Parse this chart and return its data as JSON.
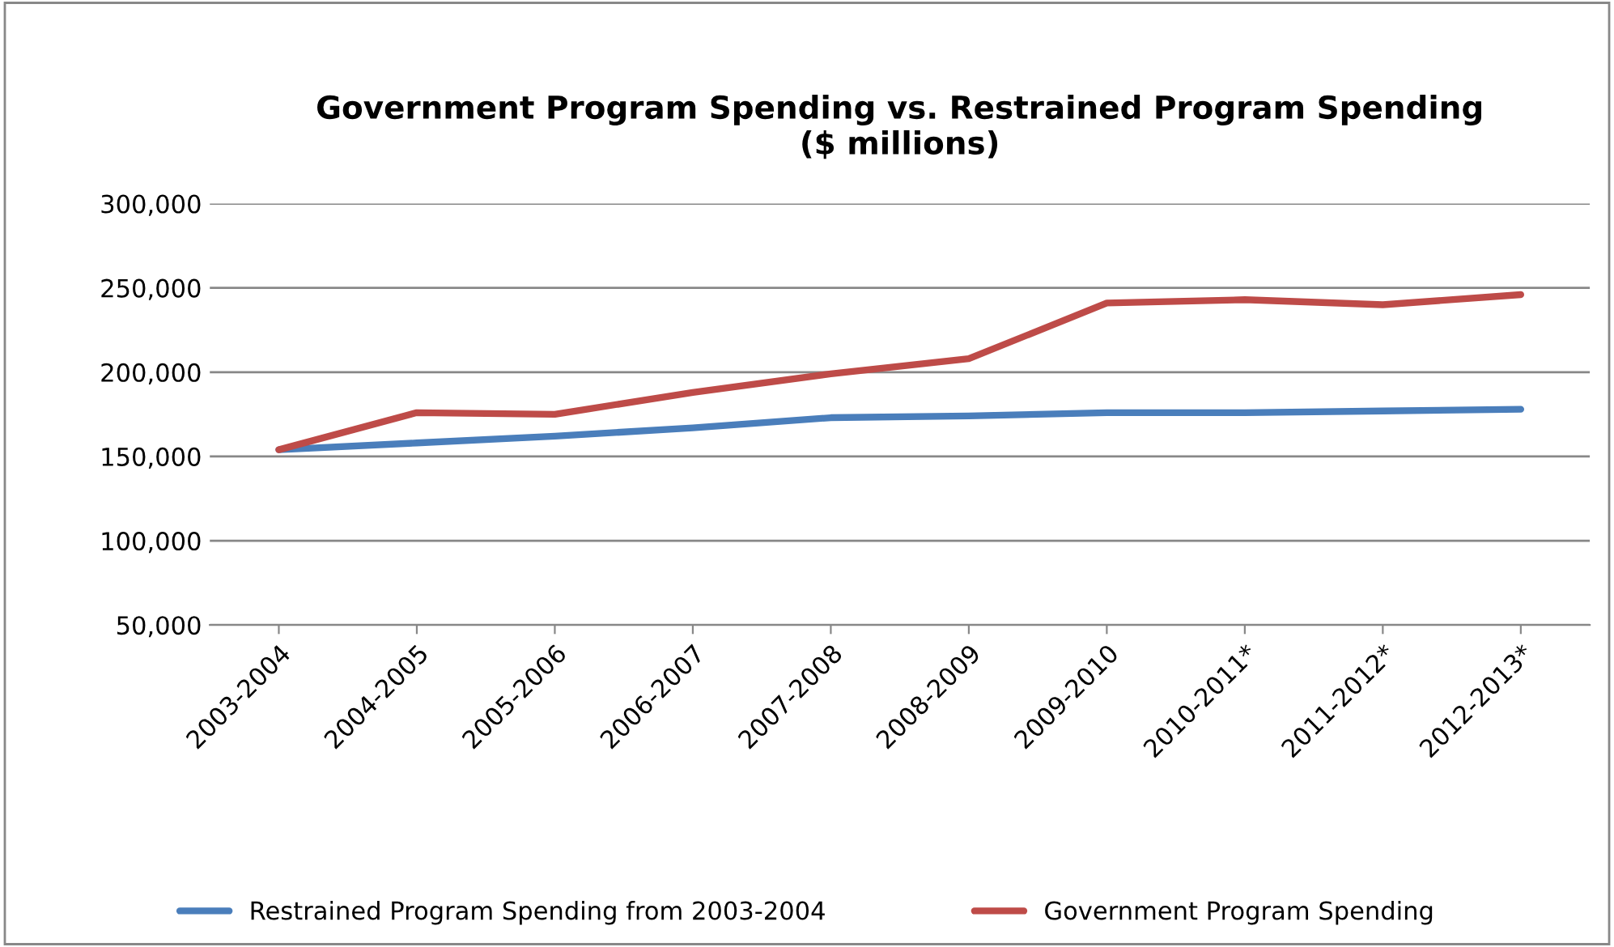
{
  "chart_data": {
    "type": "line",
    "title": "Government Program Spending vs. Restrained Program Spending\n($ millions)",
    "categories": [
      "2003-2004",
      "2004-2005",
      "2005-2006",
      "2006-2007",
      "2007-2008",
      "2008-2009",
      "2009-2010",
      "2010-2011*",
      "2011-2012*",
      "2012-2013*"
    ],
    "series": [
      {
        "name": "Restrained Program Spending from 2003-2004",
        "color": "#4a7ebb",
        "values": [
          154000,
          158000,
          162000,
          167000,
          173000,
          174000,
          176000,
          176000,
          177000,
          178000
        ]
      },
      {
        "name": "Government Program Spending",
        "color": "#be4b48",
        "values": [
          154000,
          176000,
          175000,
          188000,
          199000,
          208000,
          241000,
          243000,
          240000,
          246000
        ]
      }
    ],
    "ylim": [
      50000,
      300000
    ],
    "yticks": [
      {
        "value": 50000,
        "label": "50,000"
      },
      {
        "value": 100000,
        "label": "100,000"
      },
      {
        "value": 150000,
        "label": "150,000"
      },
      {
        "value": 200000,
        "label": "200,000"
      },
      {
        "value": 250000,
        "label": "250,000"
      },
      {
        "value": 300000,
        "label": "300,000"
      }
    ],
    "grid": "y",
    "legend": "bottom",
    "marker": "none",
    "line_style": "solid"
  }
}
